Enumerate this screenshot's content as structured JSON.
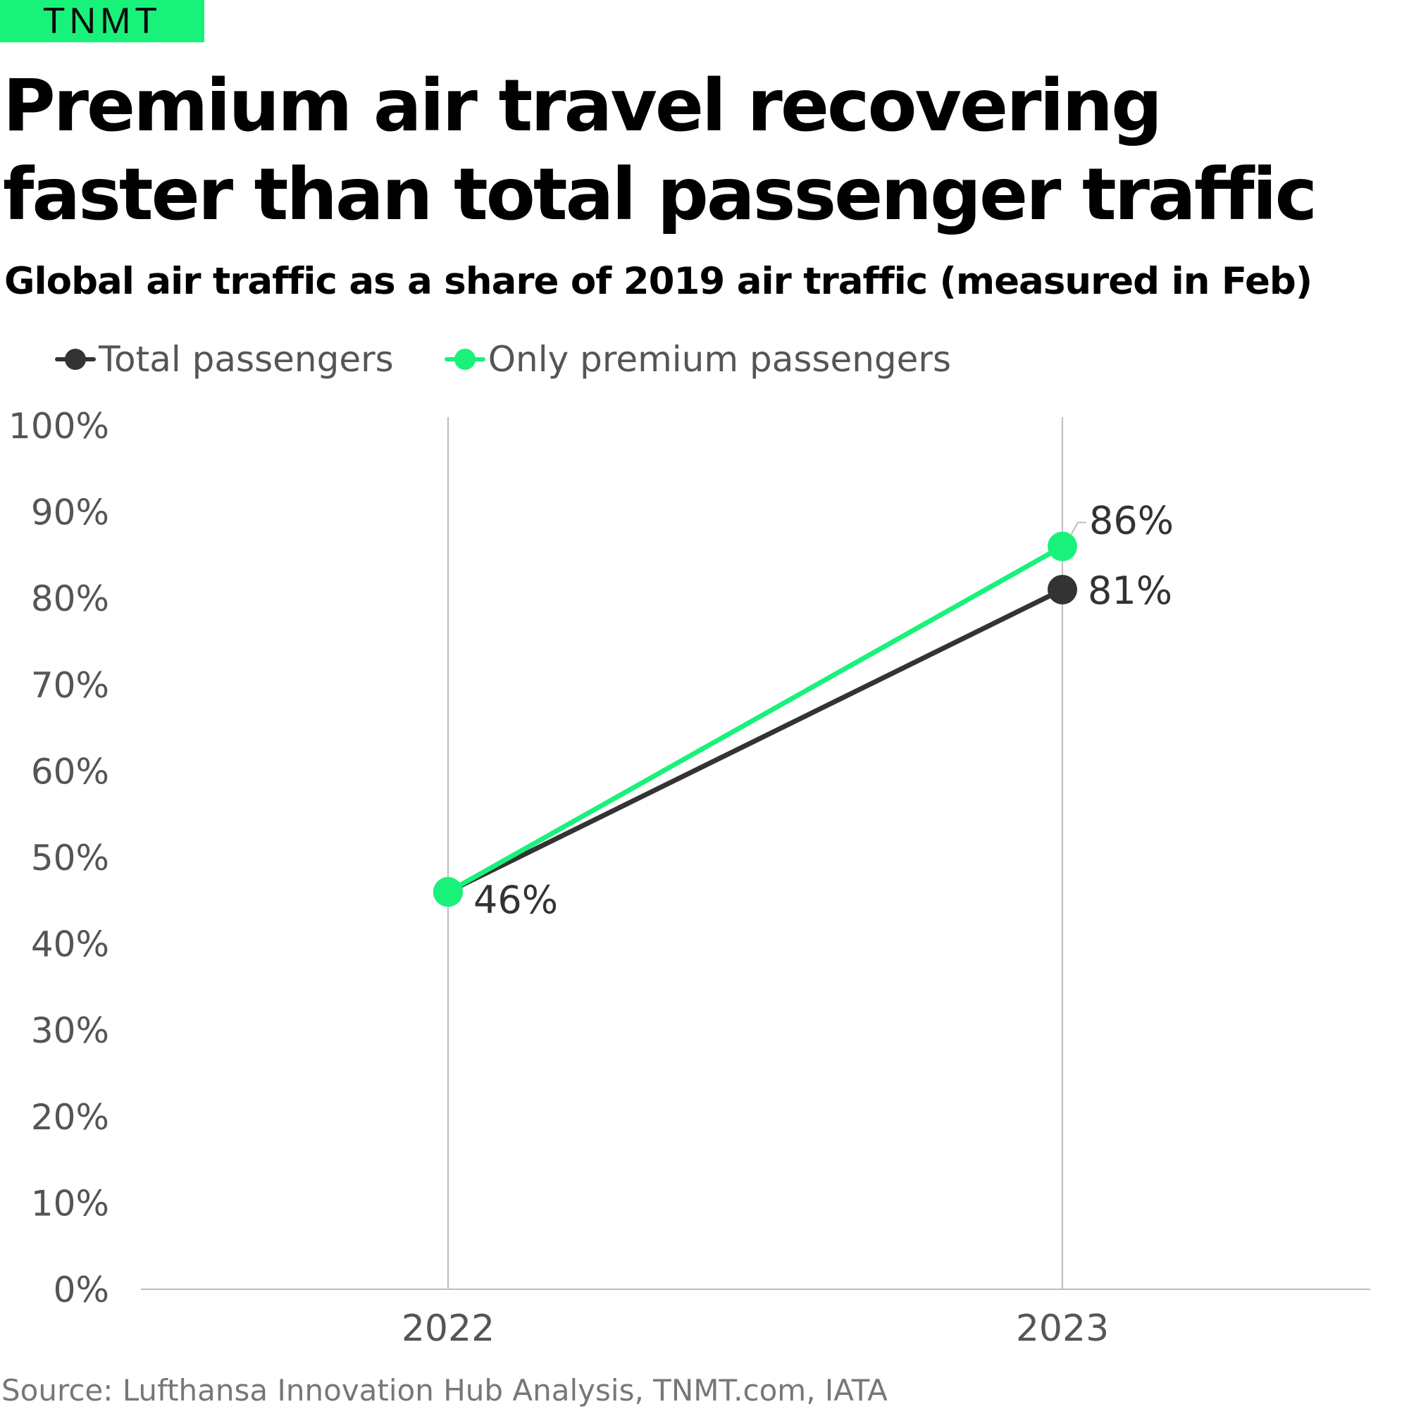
{
  "brand": {
    "logo_text": "TNMT"
  },
  "header": {
    "title": "Premium air travel recovering faster than total passenger traffic",
    "subtitle": "Global air traffic as a share of 2019 air traffic (measured in Feb)"
  },
  "legend": {
    "items": [
      {
        "label": "Total passengers",
        "color": "#333333"
      },
      {
        "label": "Only premium passengers",
        "color": "#19f27a"
      }
    ]
  },
  "chart_data": {
    "type": "line",
    "title": "Premium air travel recovering faster than total passenger traffic",
    "subtitle": "Global air traffic as a share of 2019 air traffic (measured in Feb)",
    "categories": [
      "2022",
      "2023"
    ],
    "series": [
      {
        "name": "Total passengers",
        "color": "#333333",
        "values": [
          46,
          81
        ],
        "labels": [
          "46%",
          "81%"
        ]
      },
      {
        "name": "Only premium passengers",
        "color": "#19f27a",
        "values": [
          46,
          86
        ],
        "labels": [
          "",
          "86%"
        ]
      }
    ],
    "ylim": [
      0,
      100
    ],
    "yticks": [
      0,
      10,
      20,
      30,
      40,
      50,
      60,
      70,
      80,
      90,
      100
    ],
    "ytick_labels": [
      "0%",
      "10%",
      "20%",
      "30%",
      "40%",
      "50%",
      "60%",
      "70%",
      "80%",
      "90%",
      "100%"
    ],
    "xlabel": "",
    "ylabel": "",
    "grid": "vertical",
    "legend_position": "top-left"
  },
  "footer": {
    "source": "Source: Lufthansa Innovation Hub Analysis, TNMT.com, IATA"
  }
}
